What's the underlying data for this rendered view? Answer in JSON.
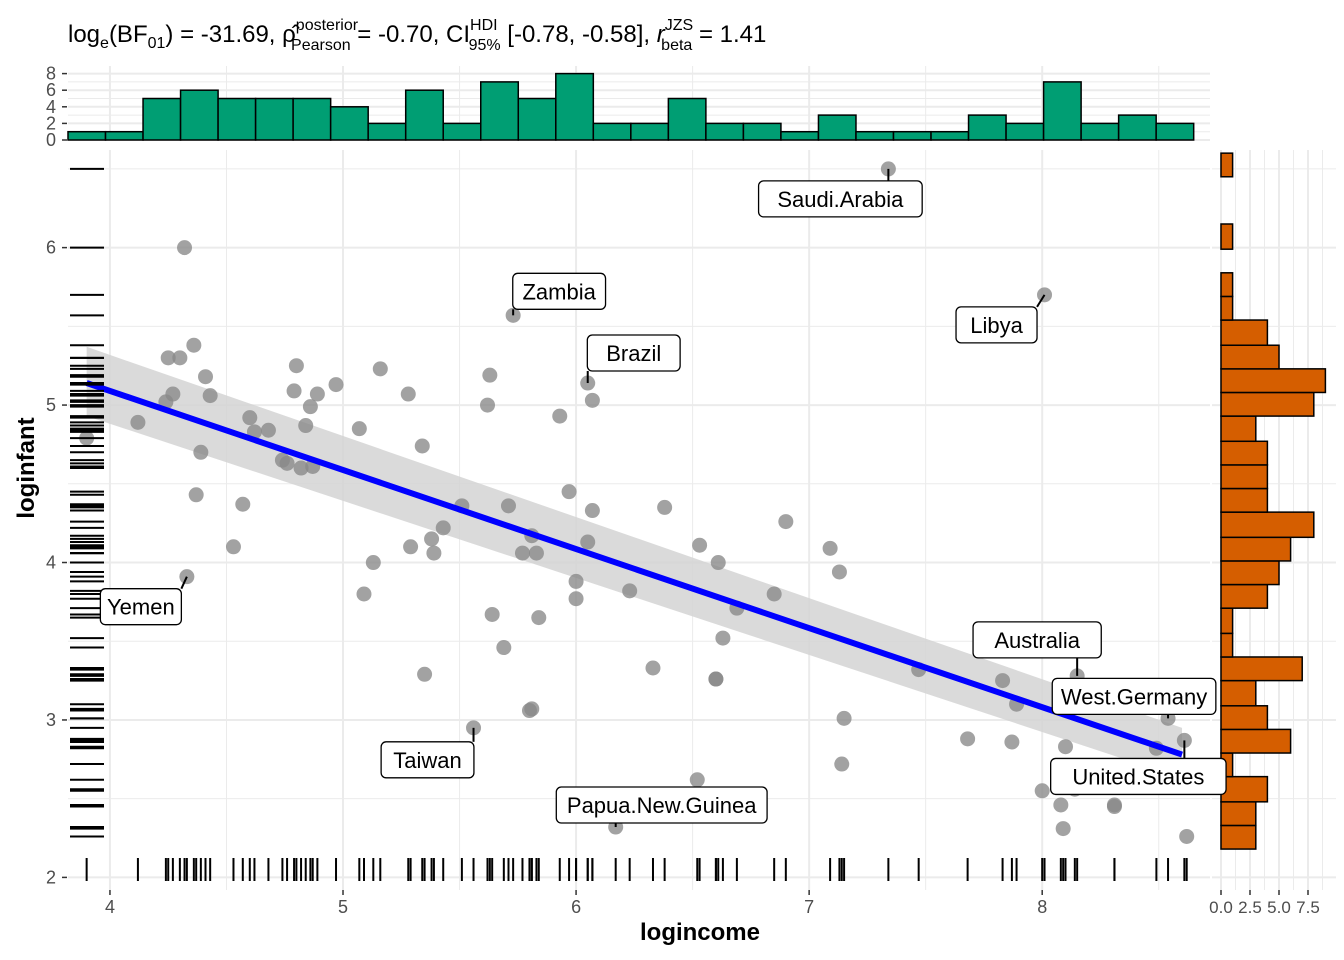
{
  "colors": {
    "point": "#888888",
    "fit_line": "#0000ff",
    "ci_band": "#d3d3d3",
    "top_hist": "#009e73",
    "right_hist": "#d55e00",
    "grid": "#ebebeb",
    "label_fill": "#ffffff"
  },
  "subtitle": {
    "loge": "log",
    "e": "e",
    "bf": "(BF",
    "bf_sub": "01",
    "bf_val": ") = -31.69, ",
    "rho": "ρ̂",
    "rho_sup": "posterior",
    "rho_sub": "Pearson",
    "rho_val": " = -0.70, CI",
    "ci_sup": "HDI",
    "ci_sub": "95%",
    "ci_val": " [-0.78, -0.58], ",
    "r": "r",
    "r_sup": "JZS",
    "r_sub": "beta",
    "r_val": " = 1.41"
  },
  "chart_data": [
    {
      "name": "main_scatter",
      "type": "scatter",
      "xlabel": "logincome",
      "ylabel": "loginfant",
      "xlim": [
        3.82,
        8.72
      ],
      "ylim": [
        1.92,
        6.62
      ],
      "xticks": [
        4,
        5,
        6,
        7,
        8
      ],
      "yticks": [
        2,
        3,
        4,
        5,
        6
      ],
      "fit": {
        "x": [
          3.9,
          8.6
        ],
        "y": [
          5.14,
          2.78
        ],
        "ci_low": [
          4.93,
          2.63
        ],
        "ci_high": [
          5.37,
          2.95
        ]
      },
      "points": [
        [
          3.9,
          4.79
        ],
        [
          4.12,
          4.89
        ],
        [
          4.24,
          5.02
        ],
        [
          4.25,
          5.3
        ],
        [
          4.27,
          5.07
        ],
        [
          4.3,
          5.3
        ],
        [
          4.32,
          6.0
        ],
        [
          4.33,
          3.91
        ],
        [
          4.36,
          5.38
        ],
        [
          4.37,
          4.43
        ],
        [
          4.39,
          4.7
        ],
        [
          4.41,
          5.18
        ],
        [
          4.43,
          5.06
        ],
        [
          4.53,
          4.1
        ],
        [
          4.57,
          4.37
        ],
        [
          4.6,
          4.92
        ],
        [
          4.62,
          4.83
        ],
        [
          4.68,
          4.84
        ],
        [
          4.74,
          4.65
        ],
        [
          4.76,
          4.63
        ],
        [
          4.79,
          5.09
        ],
        [
          4.8,
          5.25
        ],
        [
          4.82,
          4.6
        ],
        [
          4.84,
          4.87
        ],
        [
          4.86,
          4.99
        ],
        [
          4.87,
          4.61
        ],
        [
          4.89,
          5.07
        ],
        [
          4.97,
          5.13
        ],
        [
          5.07,
          4.85
        ],
        [
          5.09,
          3.8
        ],
        [
          5.13,
          4.0
        ],
        [
          5.16,
          5.23
        ],
        [
          5.28,
          5.07
        ],
        [
          5.29,
          4.1
        ],
        [
          5.34,
          4.74
        ],
        [
          5.35,
          3.29
        ],
        [
          5.38,
          4.15
        ],
        [
          5.39,
          4.06
        ],
        [
          5.43,
          4.22
        ],
        [
          5.51,
          4.36
        ],
        [
          5.56,
          2.95
        ],
        [
          5.62,
          5.0
        ],
        [
          5.63,
          5.19
        ],
        [
          5.64,
          3.67
        ],
        [
          5.69,
          3.46
        ],
        [
          5.71,
          4.36
        ],
        [
          5.73,
          5.57
        ],
        [
          5.77,
          4.06
        ],
        [
          5.8,
          3.06
        ],
        [
          5.81,
          3.07
        ],
        [
          5.81,
          4.17
        ],
        [
          5.83,
          4.06
        ],
        [
          5.84,
          3.65
        ],
        [
          5.93,
          4.93
        ],
        [
          5.97,
          4.45
        ],
        [
          6.0,
          3.77
        ],
        [
          6.0,
          3.88
        ],
        [
          6.05,
          4.13
        ],
        [
          6.05,
          5.14
        ],
        [
          6.07,
          4.33
        ],
        [
          6.07,
          5.03
        ],
        [
          6.17,
          2.32
        ],
        [
          6.23,
          3.82
        ],
        [
          6.33,
          3.33
        ],
        [
          6.38,
          4.35
        ],
        [
          6.52,
          2.62
        ],
        [
          6.53,
          4.11
        ],
        [
          6.6,
          3.26
        ],
        [
          6.6,
          3.26
        ],
        [
          6.61,
          4.0
        ],
        [
          6.63,
          3.52
        ],
        [
          6.69,
          3.71
        ],
        [
          6.85,
          3.8
        ],
        [
          6.9,
          4.26
        ],
        [
          7.09,
          4.09
        ],
        [
          7.13,
          3.94
        ],
        [
          7.14,
          2.72
        ],
        [
          7.15,
          3.01
        ],
        [
          7.34,
          6.5
        ],
        [
          7.47,
          3.32
        ],
        [
          7.68,
          2.88
        ],
        [
          7.83,
          3.25
        ],
        [
          7.87,
          2.86
        ],
        [
          7.89,
          3.1
        ],
        [
          8.0,
          2.55
        ],
        [
          8.01,
          5.7
        ],
        [
          8.08,
          2.46
        ],
        [
          8.09,
          2.31
        ],
        [
          8.1,
          2.83
        ],
        [
          8.14,
          2.56
        ],
        [
          8.15,
          3.28
        ],
        [
          8.31,
          2.46
        ],
        [
          8.31,
          2.45
        ],
        [
          8.49,
          2.82
        ],
        [
          8.54,
          3.01
        ],
        [
          8.61,
          2.87
        ],
        [
          8.62,
          2.26
        ]
      ],
      "labeled_points": [
        {
          "label": "Saudi.Arabia",
          "x": 7.34,
          "y": 6.5
        },
        {
          "label": "Zambia",
          "x": 5.73,
          "y": 5.57
        },
        {
          "label": "Libya",
          "x": 8.01,
          "y": 5.7
        },
        {
          "label": "Brazil",
          "x": 6.05,
          "y": 5.14
        },
        {
          "label": "Yemen",
          "x": 4.33,
          "y": 3.91
        },
        {
          "label": "Australia",
          "x": 8.15,
          "y": 3.28
        },
        {
          "label": "West.Germany",
          "x": 8.54,
          "y": 3.01
        },
        {
          "label": "Taiwan",
          "x": 5.56,
          "y": 2.95
        },
        {
          "label": "United.States",
          "x": 8.61,
          "y": 2.87
        },
        {
          "label": "Papua.New.Guinea",
          "x": 6.17,
          "y": 2.32
        }
      ]
    },
    {
      "name": "top_histogram",
      "type": "bar",
      "yticks": [
        0,
        2,
        4,
        6,
        8
      ],
      "bin_start": 3.82,
      "bin_width": 0.161,
      "counts": [
        1,
        1,
        5,
        6,
        5,
        5,
        5,
        4,
        2,
        6,
        2,
        7,
        5,
        8,
        2,
        2,
        5,
        2,
        2,
        1,
        3,
        1,
        1,
        1,
        3,
        2,
        7,
        2,
        3,
        2
      ]
    },
    {
      "name": "right_histogram",
      "type": "bar",
      "orientation": "horizontal",
      "xtick_labels": [
        "0.0",
        "2.5",
        "5.0",
        "7.5"
      ],
      "xticks": [
        0,
        2.5,
        5,
        7.5
      ],
      "bins": [
        {
          "y0": 2.18,
          "y1": 2.33,
          "count": 3
        },
        {
          "y0": 2.33,
          "y1": 2.48,
          "count": 3
        },
        {
          "y0": 2.48,
          "y1": 2.64,
          "count": 4
        },
        {
          "y0": 2.64,
          "y1": 2.79,
          "count": 1
        },
        {
          "y0": 2.79,
          "y1": 2.94,
          "count": 6
        },
        {
          "y0": 2.94,
          "y1": 3.09,
          "count": 4
        },
        {
          "y0": 3.09,
          "y1": 3.25,
          "count": 3
        },
        {
          "y0": 3.25,
          "y1": 3.4,
          "count": 7
        },
        {
          "y0": 3.4,
          "y1": 3.55,
          "count": 1
        },
        {
          "y0": 3.55,
          "y1": 3.71,
          "count": 1
        },
        {
          "y0": 3.71,
          "y1": 3.86,
          "count": 4
        },
        {
          "y0": 3.86,
          "y1": 4.01,
          "count": 5
        },
        {
          "y0": 4.01,
          "y1": 4.16,
          "count": 6
        },
        {
          "y0": 4.16,
          "y1": 4.32,
          "count": 8
        },
        {
          "y0": 4.32,
          "y1": 4.47,
          "count": 4
        },
        {
          "y0": 4.47,
          "y1": 4.62,
          "count": 4
        },
        {
          "y0": 4.62,
          "y1": 4.77,
          "count": 4
        },
        {
          "y0": 4.77,
          "y1": 4.93,
          "count": 3
        },
        {
          "y0": 4.93,
          "y1": 5.08,
          "count": 8
        },
        {
          "y0": 5.08,
          "y1": 5.23,
          "count": 9
        },
        {
          "y0": 5.23,
          "y1": 5.38,
          "count": 5
        },
        {
          "y0": 5.38,
          "y1": 5.54,
          "count": 4
        },
        {
          "y0": 5.54,
          "y1": 5.69,
          "count": 1
        },
        {
          "y0": 5.69,
          "y1": 5.84,
          "count": 1
        },
        {
          "y0": 5.84,
          "y1": 5.99,
          "count": 0
        },
        {
          "y0": 5.99,
          "y1": 6.15,
          "count": 1
        },
        {
          "y0": 6.15,
          "y1": 6.3,
          "count": 0
        },
        {
          "y0": 6.3,
          "y1": 6.45,
          "count": 0
        },
        {
          "y0": 6.45,
          "y1": 6.6,
          "count": 1
        }
      ]
    }
  ]
}
